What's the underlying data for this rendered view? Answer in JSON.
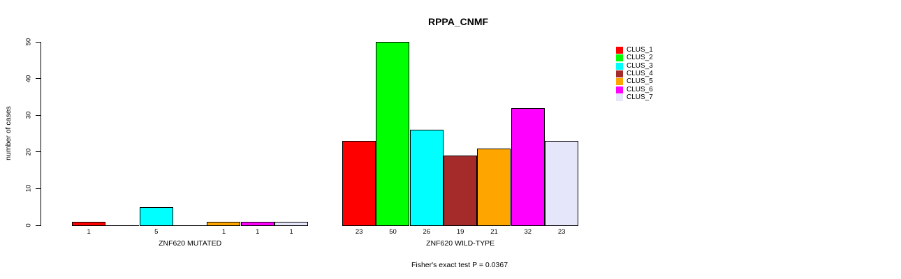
{
  "chart_data": {
    "type": "bar",
    "title": "RPPA_CNMF",
    "xlabel": "",
    "ylabel": "number of cases",
    "ylim": [
      0,
      50
    ],
    "yticks": [
      0,
      10,
      20,
      30,
      40,
      50
    ],
    "grid": false,
    "background_color": "#ffffff",
    "series_colors": [
      "#ff0000",
      "#00ff00",
      "#00ffff",
      "#a52a2a",
      "#ffa500",
      "#ff00ff",
      "#e6e6fa"
    ],
    "groups": [
      {
        "label": "ZNF620 MUTATED",
        "values": [
          1,
          0,
          5,
          0,
          1,
          1,
          1
        ]
      },
      {
        "label": "ZNF620 WILD-TYPE",
        "values": [
          23,
          50,
          26,
          19,
          21,
          32,
          23
        ]
      }
    ],
    "legend": {
      "position": "right",
      "entries": [
        {
          "label": "CLUS_1",
          "color": "#ff0000"
        },
        {
          "label": "CLUS_2",
          "color": "#00ff00"
        },
        {
          "label": "CLUS_3",
          "color": "#00ffff"
        },
        {
          "label": "CLUS_4",
          "color": "#a52a2a"
        },
        {
          "label": "CLUS_5",
          "color": "#ffa500"
        },
        {
          "label": "CLUS_6",
          "color": "#ff00ff"
        },
        {
          "label": "CLUS_7",
          "color": "#e6e6fa"
        }
      ]
    },
    "annotation": "Fisher's exact test P = 0.0367"
  }
}
